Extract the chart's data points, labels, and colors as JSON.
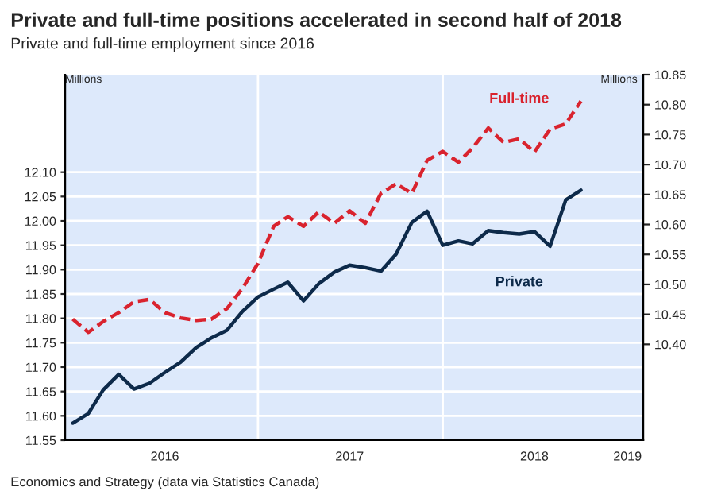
{
  "chart_data": {
    "type": "line",
    "title": "Private and full-time positions accelerated in second half of 2018",
    "subtitle": "Private and full-time employment since 2016",
    "ylabel": "Millions",
    "y2label": "Millions",
    "annotations": [
      "Economics and Strategy (data via Statistics Canada)"
    ],
    "x": [
      "2016-01",
      "2016-02",
      "2016-03",
      "2016-04",
      "2016-05",
      "2016-06",
      "2016-07",
      "2016-08",
      "2016-09",
      "2016-10",
      "2016-11",
      "2016-12",
      "2017-01",
      "2017-02",
      "2017-03",
      "2017-04",
      "2017-05",
      "2017-06",
      "2017-07",
      "2017-08",
      "2017-09",
      "2017-10",
      "2017-11",
      "2017-12",
      "2018-01",
      "2018-02",
      "2018-03",
      "2018-04",
      "2018-05",
      "2018-06",
      "2018-07",
      "2018-08",
      "2018-09",
      "2018-10"
    ],
    "series": [
      {
        "name": "Private",
        "color": "#0d2a4a",
        "line_style": "solid",
        "values": [
          11.585,
          11.605,
          11.653,
          11.685,
          11.655,
          11.667,
          11.689,
          11.71,
          11.74,
          11.76,
          11.776,
          11.814,
          11.844,
          11.86,
          11.874,
          11.836,
          11.871,
          11.895,
          11.909,
          11.904,
          11.897,
          11.932,
          11.997,
          12.02,
          11.95,
          11.959,
          11.953,
          11.98,
          11.976,
          11.973,
          11.978,
          11.948,
          12.043,
          12.063
        ]
      },
      {
        "name": "Full-time",
        "color": "#d9232e",
        "line_style": "dashed",
        "axis": "y2",
        "values": [
          10.442,
          10.42,
          10.438,
          10.453,
          10.471,
          10.475,
          10.453,
          10.444,
          10.44,
          10.442,
          10.46,
          10.493,
          10.535,
          10.597,
          10.613,
          10.597,
          10.621,
          10.602,
          10.623,
          10.602,
          10.652,
          10.668,
          10.652,
          10.707,
          10.722,
          10.704,
          10.728,
          10.761,
          10.737,
          10.743,
          10.721,
          10.759,
          10.768,
          10.806
        ]
      }
    ],
    "xlim": [
      "2015-12-17",
      "2019-02-01"
    ],
    "xticks": [
      {
        "value": "2016-07-01",
        "label": "2016"
      },
      {
        "value": "2017-01-01",
        "label": null
      },
      {
        "value": "2017-07-01",
        "label": "2017"
      },
      {
        "value": "2018-01-01",
        "label": null
      },
      {
        "value": "2018-07-01",
        "label": "2018"
      },
      {
        "value": "2019-01-01",
        "label": "2019"
      }
    ],
    "ylim": [
      11.55,
      12.3
    ],
    "yticks": [
      {
        "value": 11.55,
        "label": "11.55"
      },
      {
        "value": 11.6,
        "label": "11.60"
      },
      {
        "value": 11.65,
        "label": "11.65"
      },
      {
        "value": 11.7,
        "label": "11.70"
      },
      {
        "value": 11.75,
        "label": "11.75"
      },
      {
        "value": 11.8,
        "label": "11.80"
      },
      {
        "value": 11.85,
        "label": "11.85"
      },
      {
        "value": 11.9,
        "label": "11.90"
      },
      {
        "value": 11.95,
        "label": "11.95"
      },
      {
        "value": 12.0,
        "label": "12.00"
      },
      {
        "value": 12.05,
        "label": "12.05"
      },
      {
        "value": 12.1,
        "label": "12.10"
      }
    ],
    "y2lim": [
      10.24,
      10.85
    ],
    "y2ticks": [
      {
        "value": 10.4,
        "label": "10.40"
      },
      {
        "value": 10.45,
        "label": "10.45"
      },
      {
        "value": 10.5,
        "label": "10.50"
      },
      {
        "value": 10.55,
        "label": "10.55"
      },
      {
        "value": 10.6,
        "label": "10.60"
      },
      {
        "value": 10.65,
        "label": "10.65"
      },
      {
        "value": 10.7,
        "label": "10.70"
      },
      {
        "value": 10.75,
        "label": "10.75"
      },
      {
        "value": 10.8,
        "label": "10.80"
      },
      {
        "value": 10.85,
        "label": "10.85"
      }
    ],
    "grid": true,
    "legend": false,
    "marker": "none"
  }
}
